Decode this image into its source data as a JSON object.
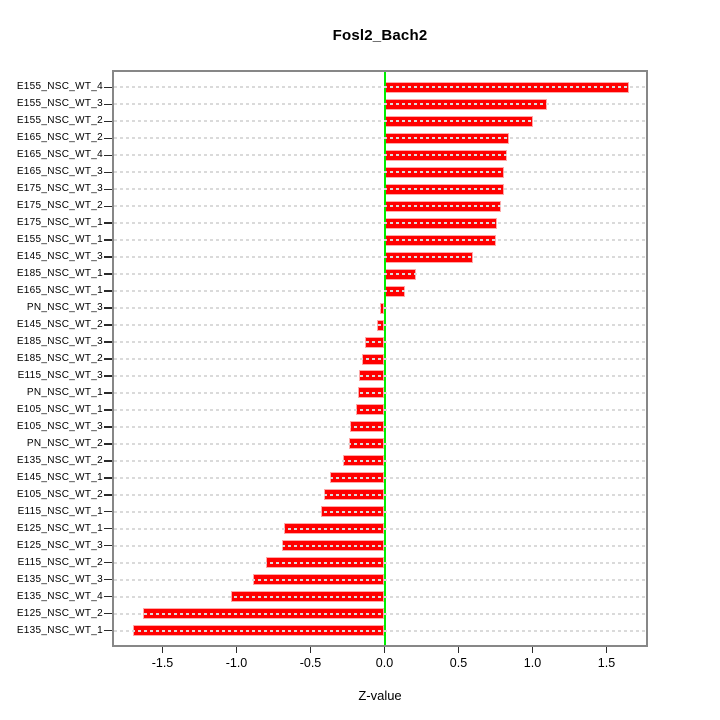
{
  "title": "Fosl2_Bach2",
  "x_axis": {
    "label": "Z-value",
    "ticks": [
      {
        "v": -1.5,
        "label": "-1.5"
      },
      {
        "v": -1.0,
        "label": "-1.0"
      },
      {
        "v": -0.5,
        "label": "-0.5"
      },
      {
        "v": 0.0,
        "label": "0.0"
      },
      {
        "v": 0.5,
        "label": "0.5"
      },
      {
        "v": 1.0,
        "label": "1.0"
      },
      {
        "v": 1.5,
        "label": "1.5"
      }
    ]
  },
  "colors": {
    "bar_fill": "#ff0000",
    "bar_border": "#ffa8a8",
    "zero_line": "#00ee00",
    "gridline": "#dadada",
    "box_border": "#878787",
    "text": "#000000"
  },
  "chart_data": {
    "type": "bar",
    "orientation": "horizontal",
    "title": "Fosl2_Bach2",
    "xlabel": "Z-value",
    "ylabel": "",
    "xlim": [
      -1.84,
      1.77
    ],
    "grid": "dotted horizontal line per category",
    "legend": "none",
    "zero_reference_line": {
      "x": 0.0,
      "color": "#00ee00"
    },
    "categories": [
      "E155_NSC_WT_4",
      "E155_NSC_WT_3",
      "E155_NSC_WT_2",
      "E165_NSC_WT_2",
      "E165_NSC_WT_4",
      "E165_NSC_WT_3",
      "E175_NSC_WT_3",
      "E175_NSC_WT_2",
      "E175_NSC_WT_1",
      "E155_NSC_WT_1",
      "E145_NSC_WT_3",
      "E185_NSC_WT_1",
      "E165_NSC_WT_1",
      "PN_NSC_WT_3",
      "E145_NSC_WT_2",
      "E185_NSC_WT_3",
      "E185_NSC_WT_2",
      "E115_NSC_WT_3",
      "PN_NSC_WT_1",
      "E105_NSC_WT_1",
      "E105_NSC_WT_3",
      "PN_NSC_WT_2",
      "E135_NSC_WT_2",
      "E145_NSC_WT_1",
      "E105_NSC_WT_2",
      "E115_NSC_WT_1",
      "E125_NSC_WT_1",
      "E125_NSC_WT_3",
      "E115_NSC_WT_2",
      "E135_NSC_WT_3",
      "E135_NSC_WT_4",
      "E125_NSC_WT_2",
      "E135_NSC_WT_1"
    ],
    "values": [
      1.65,
      1.1,
      1.0,
      0.84,
      0.83,
      0.81,
      0.81,
      0.79,
      0.76,
      0.75,
      0.6,
      0.21,
      0.14,
      -0.03,
      -0.05,
      -0.13,
      -0.15,
      -0.17,
      -0.18,
      -0.19,
      -0.23,
      -0.24,
      -0.28,
      -0.37,
      -0.41,
      -0.43,
      -0.68,
      -0.69,
      -0.8,
      -0.89,
      -1.04,
      -1.63,
      -1.7
    ]
  }
}
